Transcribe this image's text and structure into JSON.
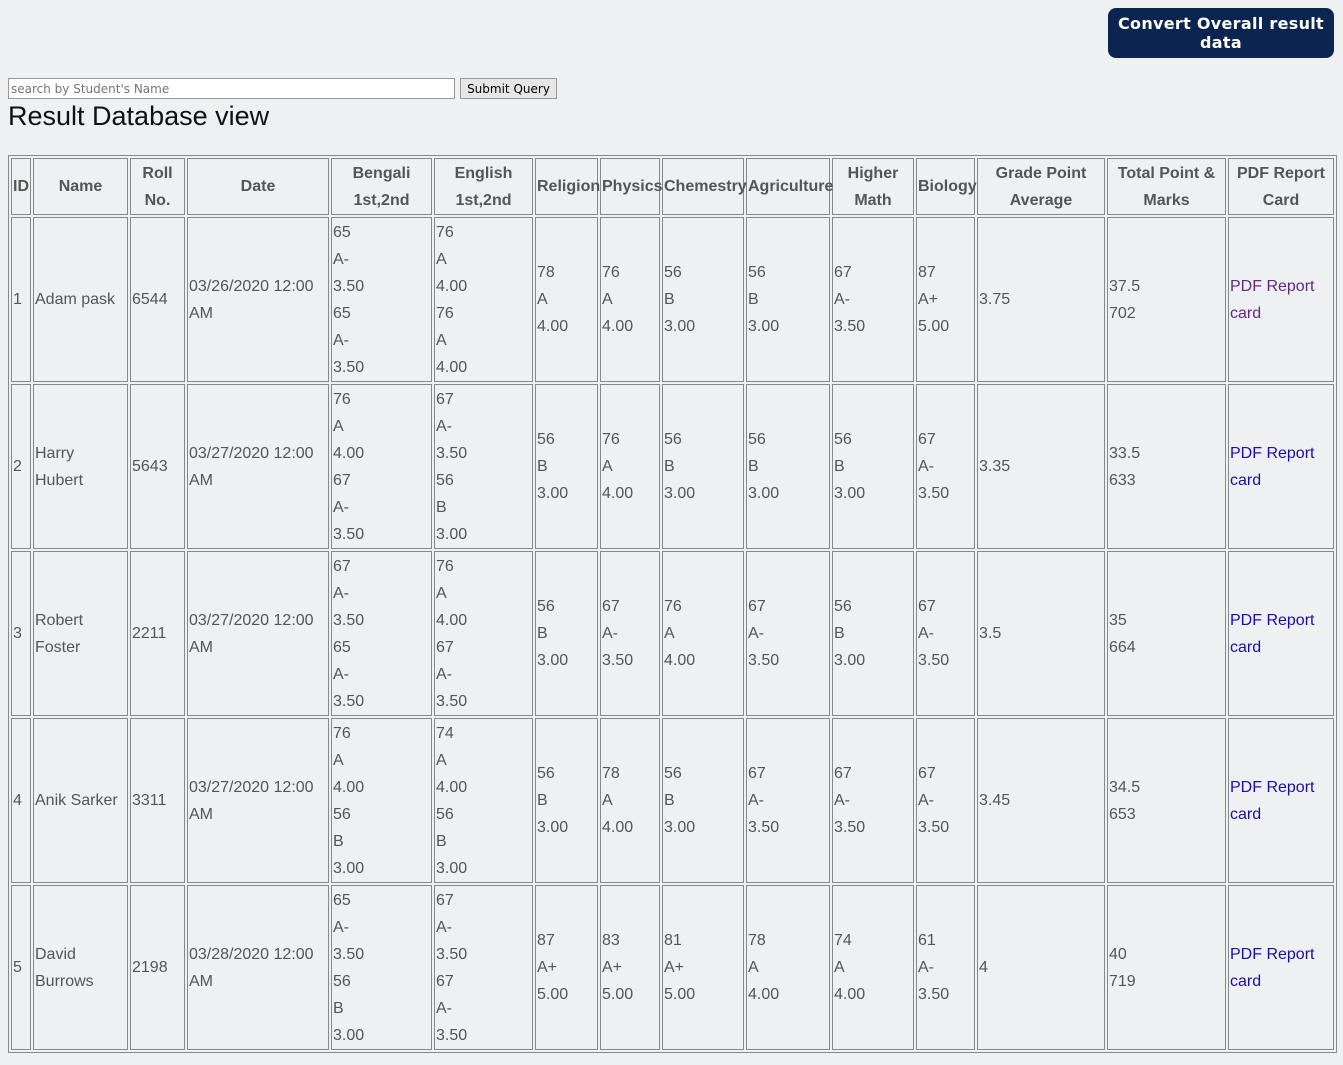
{
  "header": {
    "convert_button": "Convert Overall result data",
    "search_placeholder": "search by Student's Name",
    "submit_button": "Submit Query",
    "title": "Result Database view"
  },
  "table": {
    "columns": [
      "ID",
      "Name",
      "Roll No.",
      "Date",
      "Bengali 1st,2nd",
      "English 1st,2nd",
      "Religion",
      "Physics",
      "Chemestry",
      "Agriculture",
      "Higher Math",
      "Biology",
      "Grade Point Average",
      "Total Point & Marks",
      "PDF Report Card"
    ],
    "rows": [
      [
        "1",
        "Adam pask",
        "6544",
        "03/26/2020 12:00 AM",
        [
          "65",
          "A-",
          "3.50",
          "65",
          "A-",
          "3.50"
        ],
        [
          "76",
          "A",
          "4.00",
          "76",
          "A",
          "4.00"
        ],
        [
          "78",
          "A",
          "4.00"
        ],
        [
          "76",
          "A",
          "4.00"
        ],
        [
          "56",
          "B",
          "3.00"
        ],
        [
          "56",
          "B",
          "3.00"
        ],
        [
          "67",
          "A-",
          "3.50"
        ],
        [
          "87",
          "A+",
          "5.00"
        ],
        "3.75",
        [
          "37.5",
          "702"
        ],
        "PDF Report card"
      ],
      [
        "2",
        "Harry Hubert",
        "5643",
        "03/27/2020 12:00 AM",
        [
          "76",
          "A",
          "4.00",
          "67",
          "A-",
          "3.50"
        ],
        [
          "67",
          "A-",
          "3.50",
          "56",
          "B",
          "3.00"
        ],
        [
          "56",
          "B",
          "3.00"
        ],
        [
          "76",
          "A",
          "4.00"
        ],
        [
          "56",
          "B",
          "3.00"
        ],
        [
          "56",
          "B",
          "3.00"
        ],
        [
          "56",
          "B",
          "3.00"
        ],
        [
          "67",
          "A-",
          "3.50"
        ],
        "3.35",
        [
          "33.5",
          "633"
        ],
        "PDF Report card"
      ],
      [
        "3",
        "Robert Foster",
        "2211",
        "03/27/2020 12:00 AM",
        [
          "67",
          "A-",
          "3.50",
          "65",
          "A-",
          "3.50"
        ],
        [
          "76",
          "A",
          "4.00",
          "67",
          "A-",
          "3.50"
        ],
        [
          "56",
          "B",
          "3.00"
        ],
        [
          "67",
          "A-",
          "3.50"
        ],
        [
          "76",
          "A",
          "4.00"
        ],
        [
          "67",
          "A-",
          "3.50"
        ],
        [
          "56",
          "B",
          "3.00"
        ],
        [
          "67",
          "A-",
          "3.50"
        ],
        "3.5",
        [
          "35",
          "664"
        ],
        "PDF Report card"
      ],
      [
        "4",
        "Anik Sarker",
        "3311",
        "03/27/2020 12:00 AM",
        [
          "76",
          "A",
          "4.00",
          "56",
          "B",
          "3.00"
        ],
        [
          "74",
          "A",
          "4.00",
          "56",
          "B",
          "3.00"
        ],
        [
          "56",
          "B",
          "3.00"
        ],
        [
          "78",
          "A",
          "4.00"
        ],
        [
          "56",
          "B",
          "3.00"
        ],
        [
          "67",
          "A-",
          "3.50"
        ],
        [
          "67",
          "A-",
          "3.50"
        ],
        [
          "67",
          "A-",
          "3.50"
        ],
        "3.45",
        [
          "34.5",
          "653"
        ],
        "PDF Report card"
      ],
      [
        "5",
        "David Burrows",
        "2198",
        "03/28/2020 12:00 AM",
        [
          "65",
          "A-",
          "3.50",
          "56",
          "B",
          "3.00"
        ],
        [
          "67",
          "A-",
          "3.50",
          "67",
          "A-",
          "3.50"
        ],
        [
          "87",
          "A+",
          "5.00"
        ],
        [
          "83",
          "A+",
          "5.00"
        ],
        [
          "81",
          "A+",
          "5.00"
        ],
        [
          "78",
          "A",
          "4.00"
        ],
        [
          "74",
          "A",
          "4.00"
        ],
        [
          "61",
          "A-",
          "3.50"
        ],
        "4",
        [
          "40",
          "719"
        ],
        "PDF Report card"
      ]
    ]
  }
}
